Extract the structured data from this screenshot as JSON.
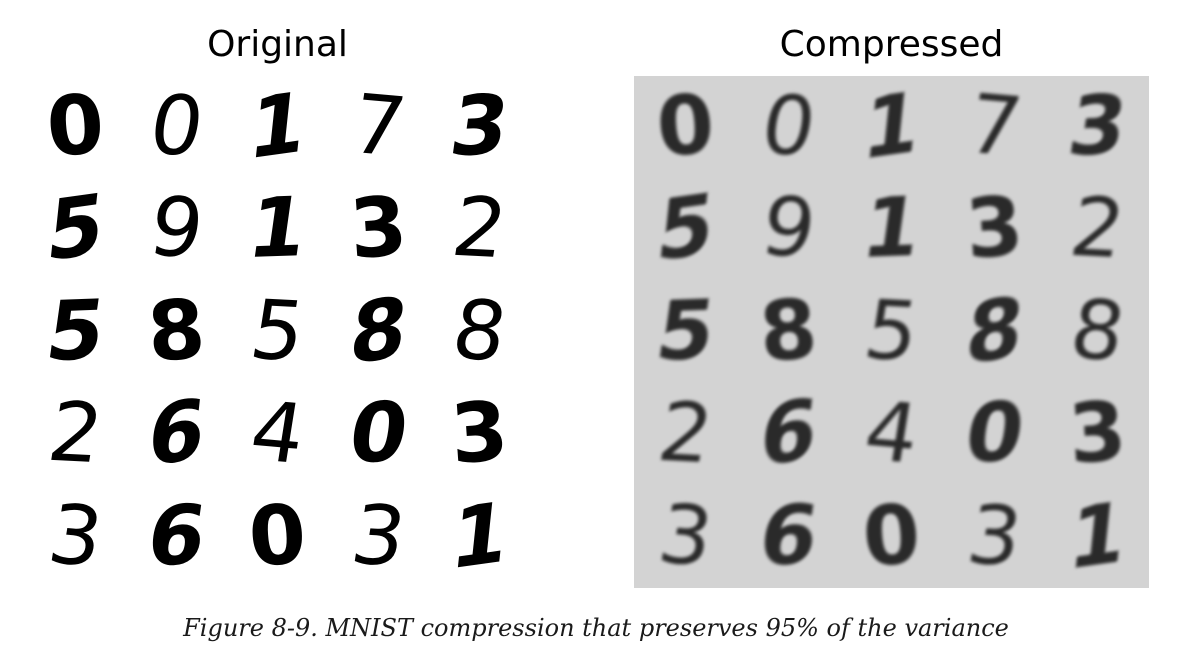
{
  "panels": [
    {
      "title": "Original",
      "background": "#ffffff",
      "rows": [
        [
          "0",
          "0",
          "1",
          "7",
          "3"
        ],
        [
          "5",
          "9",
          "1",
          "3",
          "2"
        ],
        [
          "5",
          "8",
          "5",
          "8",
          "8"
        ],
        [
          "2",
          "6",
          "4",
          "0",
          "3"
        ],
        [
          "3",
          "6",
          "0",
          "3",
          "1"
        ]
      ]
    },
    {
      "title": "Compressed",
      "background": "#d3d3d3",
      "rows": [
        [
          "0",
          "0",
          "1",
          "7",
          "3"
        ],
        [
          "5",
          "9",
          "1",
          "3",
          "2"
        ],
        [
          "5",
          "8",
          "5",
          "8",
          "8"
        ],
        [
          "2",
          "6",
          "4",
          "0",
          "3"
        ],
        [
          "3",
          "6",
          "0",
          "3",
          "1"
        ]
      ]
    }
  ],
  "caption": "Figure 8-9. MNIST compression that preserves 95% of the variance"
}
